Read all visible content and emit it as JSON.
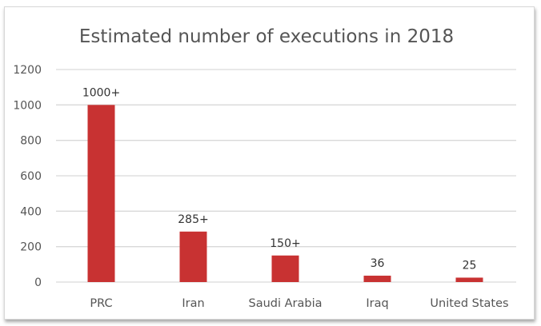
{
  "chart_data": {
    "type": "bar",
    "title": "Estimated number of executions in 2018",
    "xlabel": "",
    "ylabel": "",
    "categories": [
      "PRC",
      "Iran",
      "Saudi Arabia",
      "Iraq",
      "United States"
    ],
    "values": [
      1000,
      285,
      150,
      36,
      25
    ],
    "data_labels": [
      "1000+",
      "285+",
      "150+",
      "36",
      "25"
    ],
    "ylim": [
      0,
      1200
    ],
    "yticks": [
      "0",
      "200",
      "400",
      "600",
      "800",
      "1000",
      "1200"
    ],
    "grid": true,
    "legend": "none",
    "bar_color": "#c83232"
  }
}
